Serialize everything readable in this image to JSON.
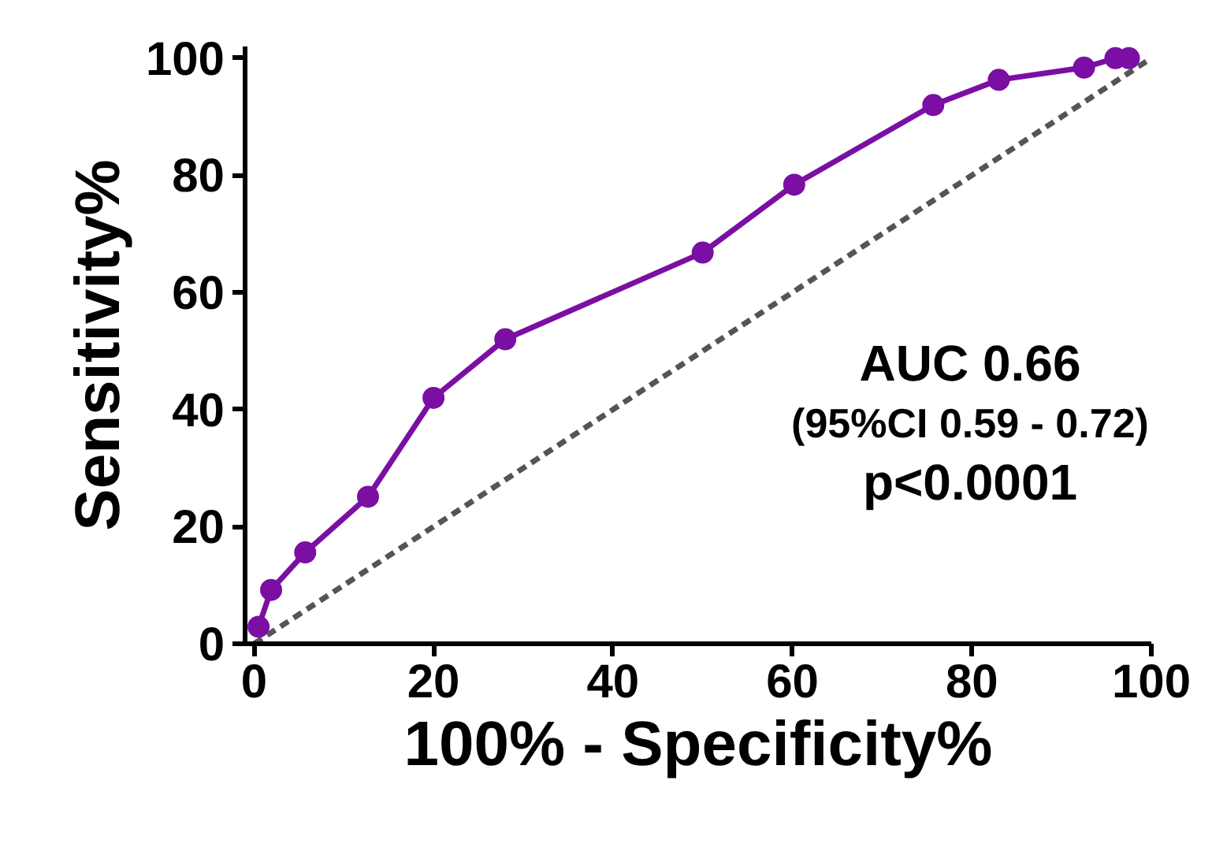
{
  "chart_data": {
    "type": "line",
    "xlabel": "100% - Specificity%",
    "ylabel": "Sensitivity%",
    "series": [
      {
        "color": "#7b0fa3",
        "marker": "circle",
        "line_style": "solid",
        "x": [
          0.5,
          1.9,
          5.7,
          12.7,
          20,
          28,
          50,
          60.2,
          75.7,
          83,
          92.5,
          96,
          97.5
        ],
        "values": [
          2.9,
          9.2,
          15.6,
          25.1,
          42,
          52,
          66.8,
          78.4,
          92,
          96.3,
          98.4,
          100,
          100
        ]
      },
      {
        "color": "#555555",
        "marker": "none",
        "line_style": "dashed",
        "x": [
          0,
          100
        ],
        "values": [
          0,
          100
        ]
      }
    ],
    "xlim": [
      -1,
      100
    ],
    "ylim": [
      0,
      102
    ],
    "xticks": [
      0,
      20,
      40,
      60,
      80,
      100
    ],
    "yticks": [
      0,
      20,
      40,
      60,
      80,
      100
    ],
    "grid": false,
    "annotations": [
      "AUC 0.66",
      "(95%CI 0.59 - 0.72)",
      "p<0.0001"
    ]
  }
}
